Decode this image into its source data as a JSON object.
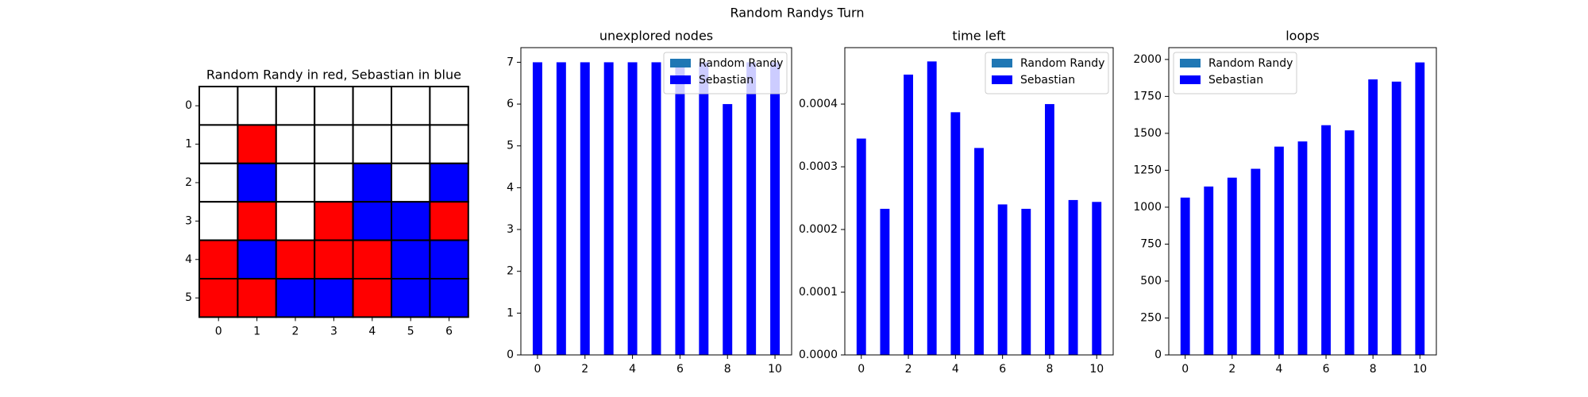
{
  "title": "Random Randys Turn",
  "chart_data": [
    {
      "type": "board",
      "title": "Random Randy in red, Sebastian in blue",
      "cells": [
        [
          "white",
          "white",
          "white",
          "white",
          "white",
          "white",
          "white"
        ],
        [
          "white",
          "red",
          "white",
          "white",
          "white",
          "white",
          "white"
        ],
        [
          "white",
          "blue",
          "white",
          "white",
          "blue",
          "white",
          "blue"
        ],
        [
          "white",
          "red",
          "white",
          "red",
          "blue",
          "blue",
          "red"
        ],
        [
          "red",
          "blue",
          "red",
          "red",
          "red",
          "blue",
          "blue"
        ],
        [
          "red",
          "red",
          "blue",
          "blue",
          "red",
          "blue",
          "blue"
        ]
      ],
      "xticks": [
        0,
        1,
        2,
        3,
        4,
        5,
        6
      ],
      "yticks": [
        0,
        1,
        2,
        3,
        4,
        5
      ]
    },
    {
      "type": "bar",
      "title": "unexplored nodes",
      "x": [
        0,
        1,
        2,
        3,
        4,
        5,
        6,
        7,
        8,
        9,
        10
      ],
      "series": [
        {
          "name": "Random Randy",
          "color": "#1f77b4",
          "values": [
            0,
            0,
            0,
            0,
            0,
            0,
            0,
            0,
            0,
            0,
            0
          ]
        },
        {
          "name": "Sebastian",
          "color": "#0000ff",
          "values": [
            7,
            7,
            7,
            7,
            7,
            7,
            7,
            7,
            6,
            7,
            7
          ]
        }
      ],
      "xlim": [
        -0.7,
        10.7
      ],
      "xticks": [
        0,
        2,
        4,
        6,
        8,
        10
      ],
      "ylim": [
        0,
        7.35
      ],
      "yticks": [
        0,
        1,
        2,
        3,
        4,
        5,
        6,
        7
      ],
      "legend": "upper right"
    },
    {
      "type": "bar",
      "title": "time left",
      "x": [
        0,
        1,
        2,
        3,
        4,
        5,
        6,
        7,
        8,
        9,
        10
      ],
      "series": [
        {
          "name": "Random Randy",
          "color": "#1f77b4",
          "values": [
            0,
            0,
            0,
            0,
            0,
            0,
            0,
            0,
            0,
            0,
            0
          ]
        },
        {
          "name": "Sebastian",
          "color": "#0000ff",
          "values": [
            0.000345,
            0.000233,
            0.000447,
            0.000468,
            0.000387,
            0.00033,
            0.00024,
            0.000233,
            0.0004,
            0.000247,
            0.000244
          ]
        }
      ],
      "xlim": [
        -0.7,
        10.7
      ],
      "xticks": [
        0,
        2,
        4,
        6,
        8,
        10
      ],
      "ylim": [
        0,
        0.00049
      ],
      "yticks": [
        {
          "value": 0,
          "label": "0.0000"
        },
        {
          "value": 0.0001,
          "label": "0.0001"
        },
        {
          "value": 0.0002,
          "label": "0.0002"
        },
        {
          "value": 0.0003,
          "label": "0.0003"
        },
        {
          "value": 0.0004,
          "label": "0.0004"
        }
      ],
      "legend": "upper right"
    },
    {
      "type": "bar",
      "title": "loops",
      "x": [
        0,
        1,
        2,
        3,
        4,
        5,
        6,
        7,
        8,
        9,
        10
      ],
      "series": [
        {
          "name": "Random Randy",
          "color": "#1f77b4",
          "values": [
            0,
            0,
            0,
            0,
            0,
            0,
            0,
            0,
            0,
            0,
            0
          ]
        },
        {
          "name": "Sebastian",
          "color": "#0000ff",
          "values": [
            1065,
            1140,
            1200,
            1260,
            1410,
            1445,
            1555,
            1520,
            1865,
            1850,
            1980
          ]
        }
      ],
      "xlim": [
        -0.7,
        10.7
      ],
      "xticks": [
        0,
        2,
        4,
        6,
        8,
        10
      ],
      "ylim": [
        0,
        2080
      ],
      "yticks": [
        0,
        250,
        500,
        750,
        1000,
        1250,
        1500,
        1750,
        2000
      ],
      "legend": "upper left"
    }
  ]
}
